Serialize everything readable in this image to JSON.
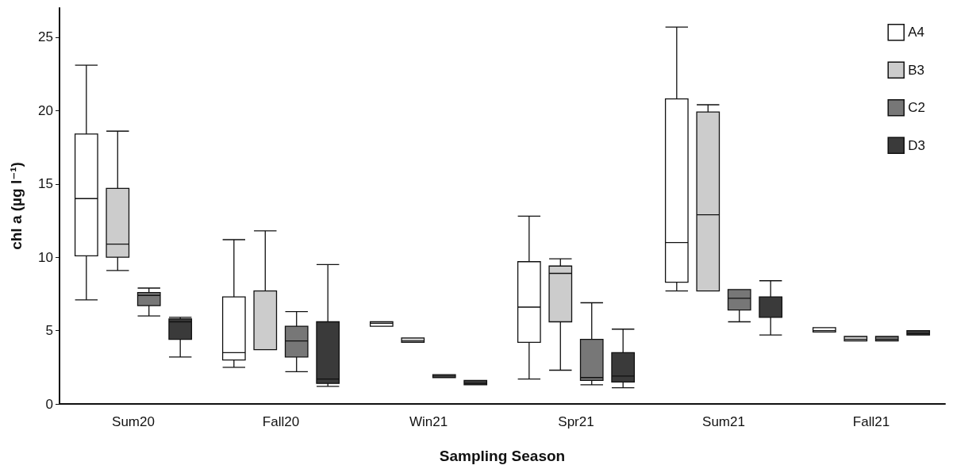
{
  "chart_data": {
    "type": "box",
    "xlabel": "Sampling Season",
    "ylabel": "chl a (µg l⁻¹)",
    "categories": [
      "Sum20",
      "Fall20",
      "Win21",
      "Spr21",
      "Sum21",
      "Fall21"
    ],
    "ylim": [
      0,
      27
    ],
    "yticks": [
      0,
      5,
      10,
      15,
      20,
      25
    ],
    "grid": false,
    "legend": "top right",
    "series": [
      {
        "name": "A4",
        "color": "#ffffff",
        "boxes": [
          {
            "low": 7.1,
            "q1": 10.1,
            "median": 14.0,
            "q3": 18.4,
            "high": 23.1
          },
          {
            "low": 2.5,
            "q1": 3.0,
            "median": 3.5,
            "q3": 7.3,
            "high": 11.2
          },
          {
            "low": 5.3,
            "q1": 5.3,
            "median": 5.5,
            "q3": 5.6,
            "high": 5.6
          },
          {
            "low": 1.7,
            "q1": 4.2,
            "median": 6.6,
            "q3": 9.7,
            "high": 12.8
          },
          {
            "low": 7.7,
            "q1": 8.3,
            "median": 11.0,
            "q3": 20.8,
            "high": 25.7
          },
          {
            "low": 4.9,
            "q1": 4.9,
            "median": 5.0,
            "q3": 5.2,
            "high": 5.2
          }
        ]
      },
      {
        "name": "B3",
        "color": "#cccccc",
        "boxes": [
          {
            "low": 9.1,
            "q1": 10.0,
            "median": 10.9,
            "q3": 14.7,
            "high": 18.6
          },
          {
            "low": 3.7,
            "q1": 3.7,
            "median": 3.7,
            "q3": 7.7,
            "high": 11.8
          },
          {
            "low": 4.2,
            "q1": 4.2,
            "median": 4.3,
            "q3": 4.5,
            "high": 4.5
          },
          {
            "low": 2.3,
            "q1": 5.6,
            "median": 8.9,
            "q3": 9.4,
            "high": 9.9
          },
          {
            "low": 7.7,
            "q1": 7.7,
            "median": 12.9,
            "q3": 19.9,
            "high": 20.4
          },
          {
            "low": 4.3,
            "q1": 4.3,
            "median": 4.4,
            "q3": 4.6,
            "high": 4.6
          }
        ]
      },
      {
        "name": "C2",
        "color": "#777777",
        "boxes": [
          {
            "low": 6.0,
            "q1": 6.7,
            "median": 7.4,
            "q3": 7.6,
            "high": 7.9
          },
          {
            "low": 2.2,
            "q1": 3.2,
            "median": 4.3,
            "q3": 5.3,
            "high": 6.3
          },
          {
            "low": 1.8,
            "q1": 1.8,
            "median": 1.9,
            "q3": 2.0,
            "high": 2.0
          },
          {
            "low": 1.3,
            "q1": 1.6,
            "median": 1.8,
            "q3": 4.4,
            "high": 6.9
          },
          {
            "low": 5.6,
            "q1": 6.4,
            "median": 7.2,
            "q3": 7.8,
            "high": 7.8
          },
          {
            "low": 4.3,
            "q1": 4.3,
            "median": 4.4,
            "q3": 4.6,
            "high": 4.6
          }
        ]
      },
      {
        "name": "D3",
        "color": "#3a3a3a",
        "boxes": [
          {
            "low": 3.2,
            "q1": 4.4,
            "median": 5.6,
            "q3": 5.8,
            "high": 5.9
          },
          {
            "low": 1.2,
            "q1": 1.4,
            "median": 1.7,
            "q3": 5.6,
            "high": 9.5
          },
          {
            "low": 1.3,
            "q1": 1.3,
            "median": 1.4,
            "q3": 1.6,
            "high": 1.6
          },
          {
            "low": 1.1,
            "q1": 1.5,
            "median": 1.9,
            "q3": 3.5,
            "high": 5.1
          },
          {
            "low": 4.7,
            "q1": 5.9,
            "median": 7.3,
            "q3": 7.3,
            "high": 8.4
          },
          {
            "low": 4.7,
            "q1": 4.7,
            "median": 4.8,
            "q3": 5.0,
            "high": 5.0
          }
        ]
      }
    ]
  }
}
